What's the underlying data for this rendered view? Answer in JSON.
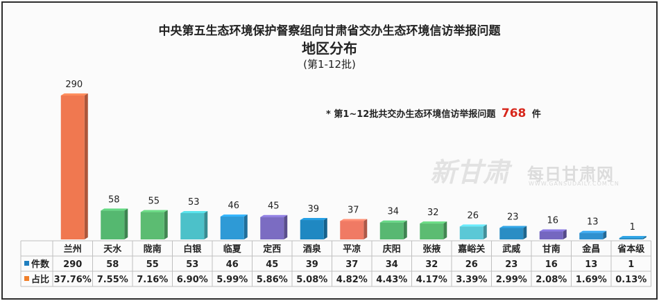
{
  "title": {
    "line1": "中央第五生态环境保护督察组向甘肃省交办生态环境信访举报问题",
    "line2": "地区分布",
    "line3": "(第1-12批)"
  },
  "note": {
    "prefix": "* 第1~12批共交办生态环境信访举报问题",
    "total": "768",
    "suffix": "件"
  },
  "watermark": {
    "script": "新甘肃",
    "brand": "每日甘肃网",
    "url": "WWW.GANSUDAILY.COM.CN"
  },
  "table": {
    "row1_label": "件数",
    "row2_label": "占比",
    "row1_marker_color": "#1f7fbf",
    "row2_marker_color": "#f07f2a"
  },
  "chart_data": {
    "type": "bar",
    "categories": [
      "兰州",
      "天水",
      "陇南",
      "白银",
      "临夏",
      "定西",
      "酒泉",
      "平凉",
      "庆阳",
      "张掖",
      "嘉峪关",
      "武威",
      "甘南",
      "金昌",
      "省本级"
    ],
    "values": [
      290,
      58,
      55,
      53,
      46,
      45,
      39,
      37,
      34,
      32,
      26,
      23,
      16,
      13,
      1
    ],
    "percent": [
      "37.76%",
      "7.55%",
      "7.16%",
      "6.90%",
      "5.99%",
      "5.86%",
      "5.08%",
      "4.82%",
      "4.43%",
      "4.17%",
      "3.39%",
      "2.99%",
      "2.08%",
      "1.69%",
      "0.13%"
    ],
    "colors": [
      "#f07850",
      "#55b870",
      "#5cbc72",
      "#4cc1c9",
      "#2e9ad6",
      "#7b6cc2",
      "#1f88c2",
      "#f07a64",
      "#58b872",
      "#5cbc72",
      "#5bc8d6",
      "#2a8dc4",
      "#7567c0",
      "#2f90cf",
      "#2a8dc4"
    ],
    "ylim": [
      0,
      290
    ]
  }
}
